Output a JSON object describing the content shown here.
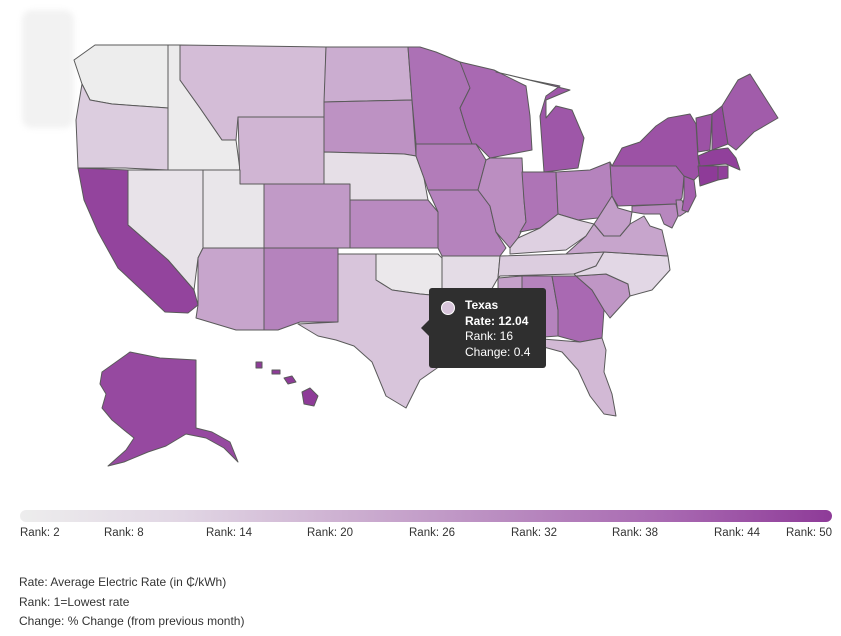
{
  "colors": {
    "scale": [
      "#ededed",
      "#e1d6e4",
      "#cdb0d1",
      "#b98bc0",
      "#a868b1",
      "#8e3b98"
    ],
    "tooltip_bg": "#2f2f2f",
    "state_border": "#5a5a5a"
  },
  "map_data": {
    "metric": "rank",
    "states": [
      {
        "id": "WA",
        "rank": 2
      },
      {
        "id": "OR",
        "rank": 14
      },
      {
        "id": "CA",
        "rank": 48
      },
      {
        "id": "ID",
        "rank": 3
      },
      {
        "id": "NV",
        "rank": 6
      },
      {
        "id": "UT",
        "rank": 5
      },
      {
        "id": "AZ",
        "rank": 24
      },
      {
        "id": "MT",
        "rank": 18
      },
      {
        "id": "WY",
        "rank": 20
      },
      {
        "id": "CO",
        "rank": 27
      },
      {
        "id": "NM",
        "rank": 33
      },
      {
        "id": "ND",
        "rank": 22
      },
      {
        "id": "SD",
        "rank": 29
      },
      {
        "id": "NE",
        "rank": 8
      },
      {
        "id": "KS",
        "rank": 31
      },
      {
        "id": "OK",
        "rank": 4
      },
      {
        "id": "TX",
        "rank": 16
      },
      {
        "id": "MN",
        "rank": 38
      },
      {
        "id": "IA",
        "rank": 35
      },
      {
        "id": "MO",
        "rank": 33
      },
      {
        "id": "AR",
        "rank": 9
      },
      {
        "id": "LA",
        "rank": 7
      },
      {
        "id": "WI",
        "rank": 40
      },
      {
        "id": "IL",
        "rank": 30
      },
      {
        "id": "MI",
        "rank": 44
      },
      {
        "id": "IN",
        "rank": 37
      },
      {
        "id": "OH",
        "rank": 33
      },
      {
        "id": "KY",
        "rank": 13
      },
      {
        "id": "TN",
        "rank": 14
      },
      {
        "id": "MS",
        "rank": 25
      },
      {
        "id": "AL",
        "rank": 33
      },
      {
        "id": "GA",
        "rank": 40
      },
      {
        "id": "FL",
        "rank": 19
      },
      {
        "id": "SC",
        "rank": 28
      },
      {
        "id": "NC",
        "rank": 11
      },
      {
        "id": "VA",
        "rank": 24
      },
      {
        "id": "WV",
        "rank": 26
      },
      {
        "id": "PA",
        "rank": 39
      },
      {
        "id": "NY",
        "rank": 45
      },
      {
        "id": "VT",
        "rank": 45
      },
      {
        "id": "NH",
        "rank": 47
      },
      {
        "id": "ME",
        "rank": 43
      },
      {
        "id": "MA",
        "rank": 49
      },
      {
        "id": "CT",
        "rank": 50
      },
      {
        "id": "RI",
        "rank": 49
      },
      {
        "id": "NJ",
        "rank": 42
      },
      {
        "id": "DE",
        "rank": 30
      },
      {
        "id": "MD",
        "rank": 32
      },
      {
        "id": "AK",
        "rank": 47
      },
      {
        "id": "HI",
        "rank": 50
      }
    ]
  },
  "tooltip": {
    "state": "Texas",
    "rate": "Rate: 12.04",
    "rank": "Rank: 16",
    "change": "Change: 0.4"
  },
  "legend": {
    "min_rank": 2,
    "max_rank": 50,
    "labels": [
      "Rank: 2",
      "Rank: 8",
      "Rank: 14",
      "Rank: 20",
      "Rank: 26",
      "Rank: 32",
      "Rank: 38",
      "Rank: 44",
      "Rank: 50"
    ]
  },
  "notes": {
    "rate": "Rate: Average Electric Rate (in ₵/kWh)",
    "rank": "Rank: 1=Lowest rate",
    "change": "Change: % Change (from previous month)"
  }
}
